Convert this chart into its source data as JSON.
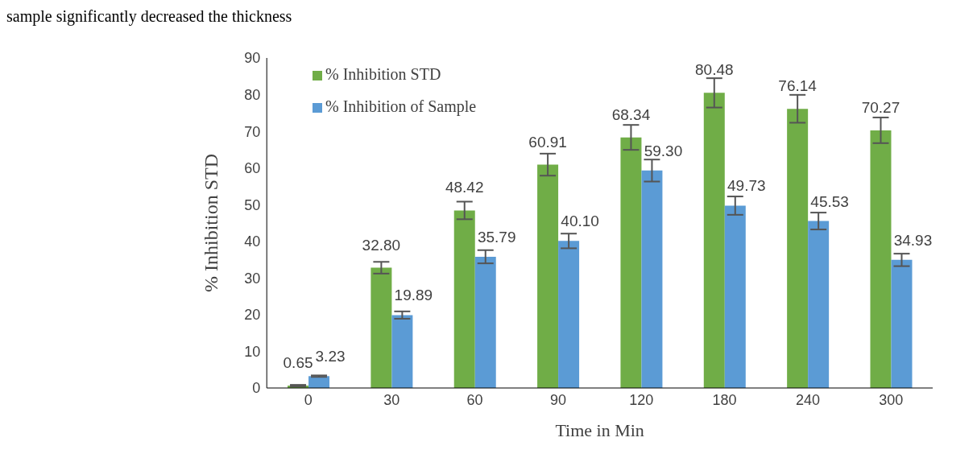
{
  "chart_data": {
    "type": "bar",
    "xlabel": "Time in Min",
    "ylabel": "% Inhibition  STD",
    "categories": [
      "0",
      "30",
      "60",
      "90",
      "120",
      "180",
      "240",
      "300"
    ],
    "series": [
      {
        "name": "% Inhibition  STD",
        "color": "#70ad47",
        "values": [
          0.65,
          32.8,
          48.42,
          60.91,
          68.34,
          80.48,
          76.14,
          70.27
        ],
        "errors": [
          0.2,
          1.6,
          2.4,
          3,
          3.4,
          4,
          3.8,
          3.5
        ],
        "value_labels": [
          "0.65",
          "32.80",
          "48.42",
          "60.91",
          "68.34",
          "80.48",
          "76.14",
          "70.27"
        ]
      },
      {
        "name": "% Inhibition of Sample",
        "color": "#5b9bd5",
        "values": [
          3.23,
          19.89,
          35.79,
          40.1,
          59.3,
          49.73,
          45.53,
          34.93
        ],
        "errors": [
          0.2,
          1,
          1.8,
          2,
          3,
          2.5,
          2.3,
          1.7
        ],
        "value_labels": [
          "3.23",
          "19.89",
          "35.79",
          "40.10",
          "59.30",
          "49.73",
          "45.53",
          "34.93"
        ]
      }
    ],
    "ylim": [
      0,
      90
    ],
    "yticks": [
      0,
      10,
      20,
      30,
      40,
      50,
      60,
      70,
      80,
      90
    ],
    "grid": false,
    "legend": "top left",
    "annotations": [
      "sample significantly decreased the thickness"
    ]
  }
}
